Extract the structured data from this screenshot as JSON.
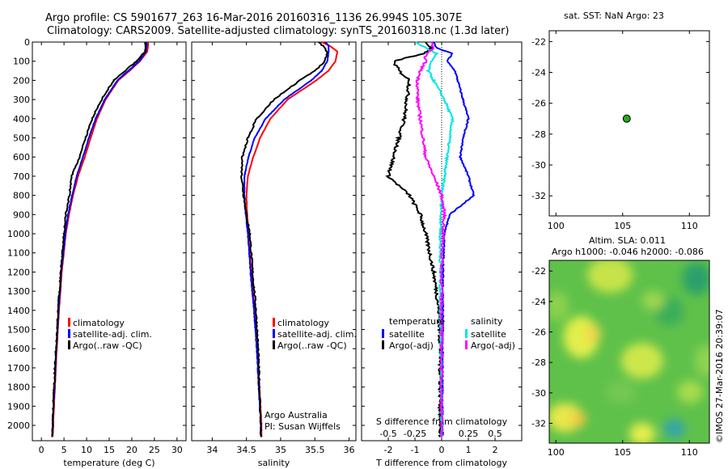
{
  "header": {
    "title_line1": "Argo profile: CS 5901677_263 16-Mar-2016 20160316_1136 26.994S 105.307E",
    "title_line2": "Climatology: CARS2009. Satellite-adjusted climatology: synTS_20160318.nc (1.3d later)"
  },
  "side_texts": {
    "map_title": "sat. SST: NaN Argo: 23",
    "sla_line1": "Altim. SLA: 0.011",
    "sla_line2": "Argo h1000: -0.046 h2000: -0.086",
    "credit": "©IMOS 27-Mar-2016 20:39:07"
  },
  "colors": {
    "climatology": "#ff0000",
    "satellite": "#0000ff",
    "argo": "#000000",
    "sat_salinity": "#00e5e5",
    "argo_salinity_diff": "#ff00ff",
    "float_marker": "#22aa22"
  },
  "chart_data": [
    {
      "type": "line",
      "name": "temperature-profile",
      "xlabel": "temperature (deg C)",
      "xlim": [
        -2,
        32
      ],
      "ylim": [
        2080,
        0
      ],
      "xticks": [
        0,
        5,
        10,
        15,
        20,
        25,
        30
      ],
      "yticks": [
        0,
        100,
        200,
        300,
        400,
        500,
        600,
        700,
        800,
        900,
        1000,
        1100,
        1200,
        1300,
        1400,
        1500,
        1600,
        1700,
        1800,
        1900,
        2000
      ],
      "depth": [
        0,
        20,
        50,
        100,
        150,
        200,
        300,
        400,
        500,
        600,
        700,
        800,
        900,
        1000,
        1200,
        1400,
        1600,
        1800,
        2000,
        2060
      ],
      "series": [
        {
          "key": "clim",
          "values": [
            23.6,
            23.6,
            23.4,
            21.8,
            19.5,
            17.0,
            14.2,
            12.3,
            10.9,
            9.6,
            8.1,
            7.0,
            6.1,
            5.4,
            4.5,
            3.9,
            3.4,
            3.0,
            2.6,
            2.5
          ]
        },
        {
          "key": "sat",
          "values": [
            23.3,
            23.3,
            23.1,
            21.6,
            19.2,
            16.8,
            14.0,
            12.0,
            10.5,
            9.2,
            7.8,
            6.8,
            5.9,
            5.3,
            4.4,
            3.8,
            3.3,
            2.9,
            2.5,
            2.4
          ]
        },
        {
          "key": "argo",
          "values": [
            23.0,
            23.0,
            22.9,
            21.0,
            18.5,
            16.0,
            13.3,
            11.2,
            9.8,
            8.4,
            6.7,
            6.2,
            5.4,
            5.0,
            4.3,
            3.7,
            3.2,
            2.8,
            2.5,
            2.4
          ]
        }
      ],
      "legend": [
        "climatology",
        "satellite-adj. clim.",
        "Argo(..raw -QC)"
      ]
    },
    {
      "type": "line",
      "name": "salinity-profile",
      "xlabel": "salinity",
      "xlim": [
        33.7,
        36.1
      ],
      "ylim": [
        2080,
        0
      ],
      "xticks": [
        34,
        34.5,
        35,
        35.5,
        36
      ],
      "xtick_labels": [
        "34",
        "34.5",
        "35",
        "35.5",
        "36"
      ],
      "depth": [
        0,
        20,
        50,
        100,
        150,
        200,
        300,
        400,
        500,
        600,
        700,
        800,
        900,
        1000,
        1200,
        1400,
        1600,
        1800,
        2000,
        2060
      ],
      "series": [
        {
          "key": "clim",
          "values": [
            35.6,
            35.72,
            35.83,
            35.8,
            35.7,
            35.52,
            35.1,
            34.85,
            34.7,
            34.6,
            34.52,
            34.5,
            34.51,
            34.53,
            34.57,
            34.62,
            34.66,
            34.69,
            34.72,
            34.72
          ]
        },
        {
          "key": "sat",
          "values": [
            35.65,
            35.7,
            35.7,
            35.68,
            35.6,
            35.45,
            35.05,
            34.78,
            34.62,
            34.53,
            34.47,
            34.47,
            34.49,
            34.52,
            34.56,
            34.61,
            34.65,
            34.68,
            34.71,
            34.71
          ]
        },
        {
          "key": "argo",
          "values": [
            35.55,
            35.62,
            35.68,
            35.65,
            35.5,
            35.28,
            34.9,
            34.65,
            34.52,
            34.44,
            34.43,
            34.46,
            34.5,
            34.55,
            34.59,
            34.64,
            34.67,
            34.69,
            34.71,
            34.71
          ]
        }
      ],
      "legend": [
        "climatology",
        "satellite-adj. clim.",
        "Argo(..raw -QC)"
      ],
      "annotation_line1": "Argo Australia",
      "annotation_line2": "PI: Susan Wijffels"
    },
    {
      "type": "line",
      "name": "difference-profile",
      "xlabel": "T difference from climatology",
      "xlabel_top": "S difference from climatology",
      "xlim": [
        -3,
        3
      ],
      "ylim": [
        2080,
        0
      ],
      "xticks": [
        -2,
        -1,
        0,
        1,
        2
      ],
      "top_ticks": [
        -0.5,
        -0.25,
        0,
        0.25,
        0.5
      ],
      "top_tick_labels": [
        "-0.5",
        "-0.25",
        "0",
        "0.25",
        "0.5"
      ],
      "depth": [
        0,
        30,
        60,
        100,
        150,
        200,
        300,
        400,
        500,
        600,
        700,
        800,
        900,
        1000,
        1200,
        1400,
        1600,
        1800,
        2000,
        2060
      ],
      "series": [
        {
          "key": "sat_T",
          "group": "temperature",
          "values": [
            -0.3,
            -0.2,
            0.4,
            0.2,
            0.5,
            0.6,
            0.8,
            1.0,
            0.8,
            0.7,
            1.0,
            1.2,
            0.3,
            0.1,
            0.05,
            0.05,
            0.03,
            0.03,
            0.03,
            0.03
          ]
        },
        {
          "key": "argo_T",
          "group": "temperature",
          "values": [
            -0.6,
            -0.4,
            -0.7,
            -1.8,
            -1.6,
            -1.2,
            -1.3,
            -1.4,
            -1.6,
            -1.8,
            -2.0,
            -1.2,
            -0.8,
            -0.6,
            -0.3,
            -0.1,
            -0.05,
            -0.05,
            -0.05,
            -0.05
          ]
        },
        {
          "key": "sat_S",
          "group": "salinity",
          "values": [
            -1.0,
            -0.6,
            -0.2,
            -0.4,
            -0.5,
            -0.3,
            0.1,
            0.4,
            0.3,
            0.2,
            0.1,
            0.0,
            -0.02,
            -0.05,
            -0.05,
            -0.05,
            -0.02,
            -0.02,
            0.0,
            0.0
          ]
        },
        {
          "key": "argo_S",
          "group": "salinity",
          "values": [
            -0.4,
            -0.3,
            -0.6,
            -0.6,
            -0.8,
            -0.9,
            -0.9,
            -0.8,
            -0.7,
            -0.6,
            -0.3,
            0.0,
            0.1,
            0.05,
            0.0,
            0.0,
            0.0,
            0.0,
            0.0,
            0.0
          ]
        }
      ],
      "legend_headers": [
        "temperature",
        "salinity"
      ],
      "legend": [
        "satellite",
        "Argo(-adj)",
        "satellite",
        "Argo(-adj)"
      ]
    },
    {
      "type": "scatter",
      "name": "location-map",
      "xlim": [
        99.5,
        111.5
      ],
      "ylim": [
        -33.3,
        -21.3
      ],
      "xticks": [
        100,
        105,
        110
      ],
      "yticks": [
        -22,
        -24,
        -26,
        -28,
        -30,
        -32
      ],
      "points": [
        {
          "x": 105.307,
          "y": -26.994
        }
      ]
    },
    {
      "type": "heatmap",
      "name": "sla-map",
      "xlim": [
        99.5,
        111.5
      ],
      "ylim": [
        -33.3,
        -21.3
      ],
      "xticks": [
        100,
        105,
        110
      ],
      "yticks": [
        -22,
        -24,
        -26,
        -28,
        -30,
        -32
      ]
    }
  ]
}
